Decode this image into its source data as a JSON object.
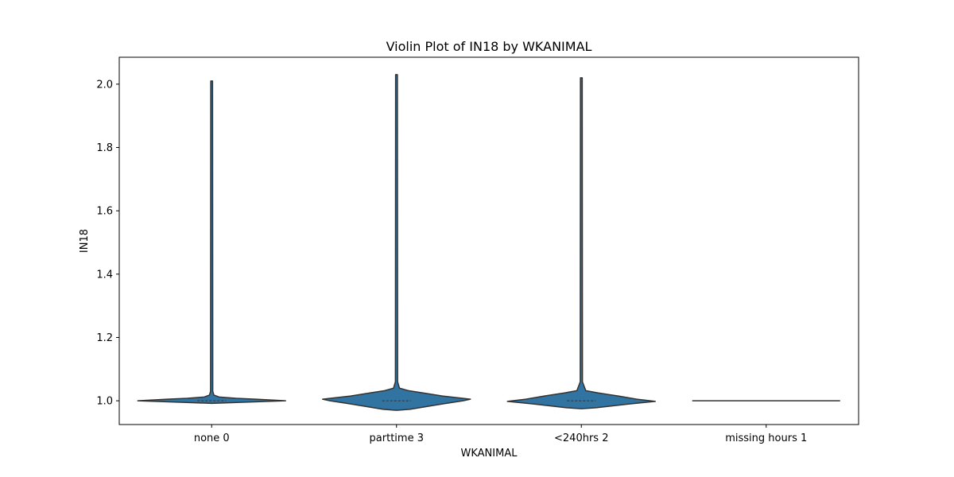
{
  "chart_data": {
    "type": "violin",
    "title": "Violin Plot of IN18 by WKANIMAL",
    "xlabel": "WKANIMAL",
    "ylabel": "IN18",
    "ylim": [
      0.925,
      2.085
    ],
    "yticks": [
      1.0,
      1.2,
      1.4,
      1.6,
      1.8,
      2.0
    ],
    "ytick_labels": [
      "1.0",
      "1.2",
      "1.4",
      "1.6",
      "1.8",
      "2.0"
    ],
    "categories": [
      "none 0",
      "parttime 3",
      "<240hrs 2",
      "missing hours 1"
    ],
    "grid": false,
    "color": "#3274a1",
    "edge_color": "#333333",
    "violins": [
      {
        "category": "none 0",
        "min": 1.0,
        "max": 2.01,
        "median": 1.0,
        "profile": [
          [
            0.992,
            0.0
          ],
          [
            0.995,
            0.38
          ],
          [
            1.0,
            1.0
          ],
          [
            1.005,
            0.6
          ],
          [
            1.008,
            0.33
          ],
          [
            1.012,
            0.1
          ],
          [
            1.018,
            0.03
          ],
          [
            1.03,
            0.015
          ],
          [
            2.01,
            0.012
          ]
        ]
      },
      {
        "category": "parttime 3",
        "min": 0.97,
        "max": 2.03,
        "median": 1.0,
        "profile": [
          [
            0.97,
            0.0
          ],
          [
            0.973,
            0.18
          ],
          [
            0.99,
            0.62
          ],
          [
            1.0,
            0.9
          ],
          [
            1.005,
            1.0
          ],
          [
            1.015,
            0.62
          ],
          [
            1.025,
            0.35
          ],
          [
            1.032,
            0.16
          ],
          [
            1.04,
            0.04
          ],
          [
            1.06,
            0.015
          ],
          [
            2.03,
            0.012
          ]
        ]
      },
      {
        "category": "<240hrs 2",
        "min": 0.975,
        "max": 2.02,
        "median": 1.0,
        "profile": [
          [
            0.975,
            0.0
          ],
          [
            0.978,
            0.2
          ],
          [
            0.99,
            0.65
          ],
          [
            0.998,
            1.0
          ],
          [
            1.005,
            0.75
          ],
          [
            1.015,
            0.5
          ],
          [
            1.025,
            0.22
          ],
          [
            1.032,
            0.06
          ],
          [
            1.06,
            0.015
          ],
          [
            2.02,
            0.012
          ]
        ]
      },
      {
        "category": "missing hours 1",
        "min": 1.0,
        "max": 1.0,
        "median": 1.0,
        "profile": []
      }
    ]
  }
}
